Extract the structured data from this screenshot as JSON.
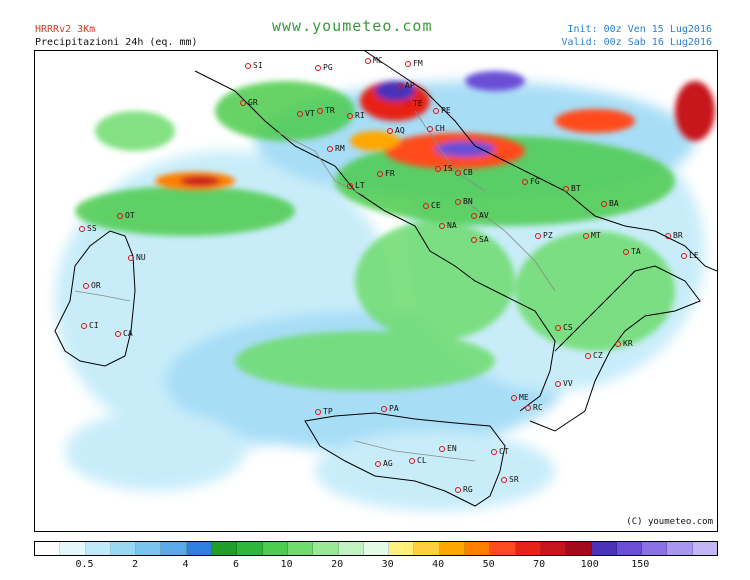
{
  "header": {
    "model": "HRRRv2 3Km",
    "product": "Precipitazioni 24h (eq. mm)",
    "site": "www.youmeteo.com",
    "init": "Init: 00z Ven  15 Lug2016",
    "valid": "Valid: 00z Sab  16 Lug2016"
  },
  "map": {
    "copyright": "(C) youmeteo.com",
    "cities": [
      "SI",
      "PG",
      "MC",
      "FM",
      "AP",
      "TE",
      "PE",
      "GR",
      "VT",
      "TR",
      "RI",
      "AQ",
      "CH",
      "RM",
      "FR",
      "LT",
      "IS",
      "CB",
      "FG",
      "BT",
      "BA",
      "CE",
      "BN",
      "AV",
      "NA",
      "SA",
      "PZ",
      "MT",
      "TA",
      "BR",
      "LE",
      "OT",
      "SS",
      "NU",
      "OR",
      "CA",
      "CI",
      "CS",
      "KR",
      "CZ",
      "VV",
      "RC",
      "ME",
      "PA",
      "TP",
      "AG",
      "CL",
      "EN",
      "CT",
      "SR",
      "RG"
    ]
  },
  "scale": {
    "colors": [
      "#ffffff",
      "#e6f7fc",
      "#bfeaf9",
      "#99d8f5",
      "#7cc4f0",
      "#5aa9ea",
      "#2f7fde",
      "#1f9e2a",
      "#2eb83b",
      "#4ecc4e",
      "#6edc6e",
      "#98e898",
      "#c2f2c2",
      "#e4fae4",
      "#fff07a",
      "#ffcf40",
      "#ffa600",
      "#ff7f00",
      "#ff4b1f",
      "#e62319",
      "#c7151e",
      "#a10b1b",
      "#4932b8",
      "#6a4fd6",
      "#8a72e6",
      "#a896f0",
      "#c3b6f6"
    ],
    "labels": [
      "0.5",
      "2",
      "4",
      "6",
      "10",
      "20",
      "30",
      "40",
      "50",
      "70",
      "100",
      "150"
    ]
  }
}
